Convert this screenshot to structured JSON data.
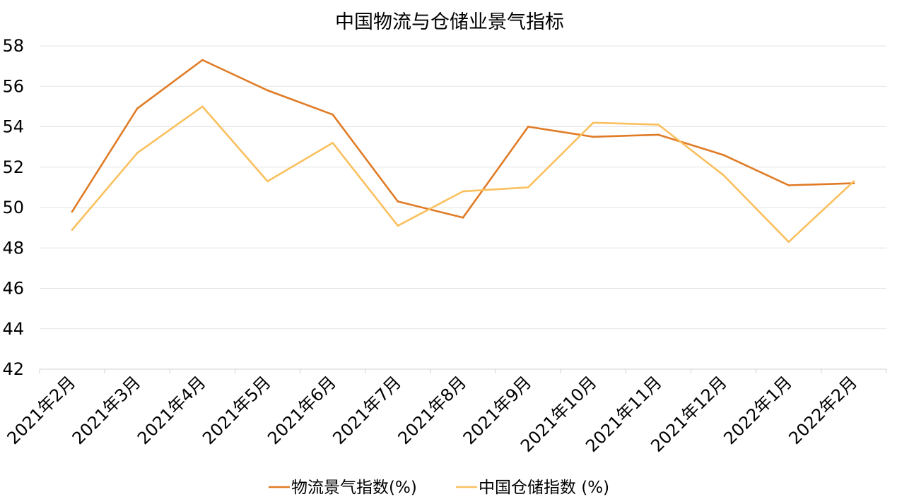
{
  "chart_data": {
    "type": "line",
    "title": "中国物流与仓储业景气指标",
    "categories": [
      "2021年2月",
      "2021年3月",
      "2021年4月",
      "2021年5月",
      "2021年6月",
      "2021年7月",
      "2021年8月",
      "2021年9月",
      "2021年10月",
      "2021年11月",
      "2021年12月",
      "2022年1月",
      "2022年2月"
    ],
    "series": [
      {
        "name": "物流景气指数(%)",
        "color": "#E07B26",
        "values": [
          49.8,
          54.9,
          57.3,
          55.8,
          54.6,
          50.3,
          49.5,
          54.0,
          53.5,
          53.6,
          52.6,
          51.1,
          51.2
        ]
      },
      {
        "name": "中国仓储指数 (%)",
        "color": "#FAC05E",
        "values": [
          48.9,
          52.7,
          55.0,
          51.3,
          53.2,
          49.1,
          50.8,
          51.0,
          54.2,
          54.1,
          51.6,
          48.3,
          51.3
        ]
      }
    ],
    "ylim": [
      42,
      58
    ],
    "yticks": [
      "58",
      "56",
      "54",
      "52",
      "50",
      "48",
      "46",
      "44",
      "42"
    ],
    "grid": true,
    "legend_position": "bottom"
  }
}
